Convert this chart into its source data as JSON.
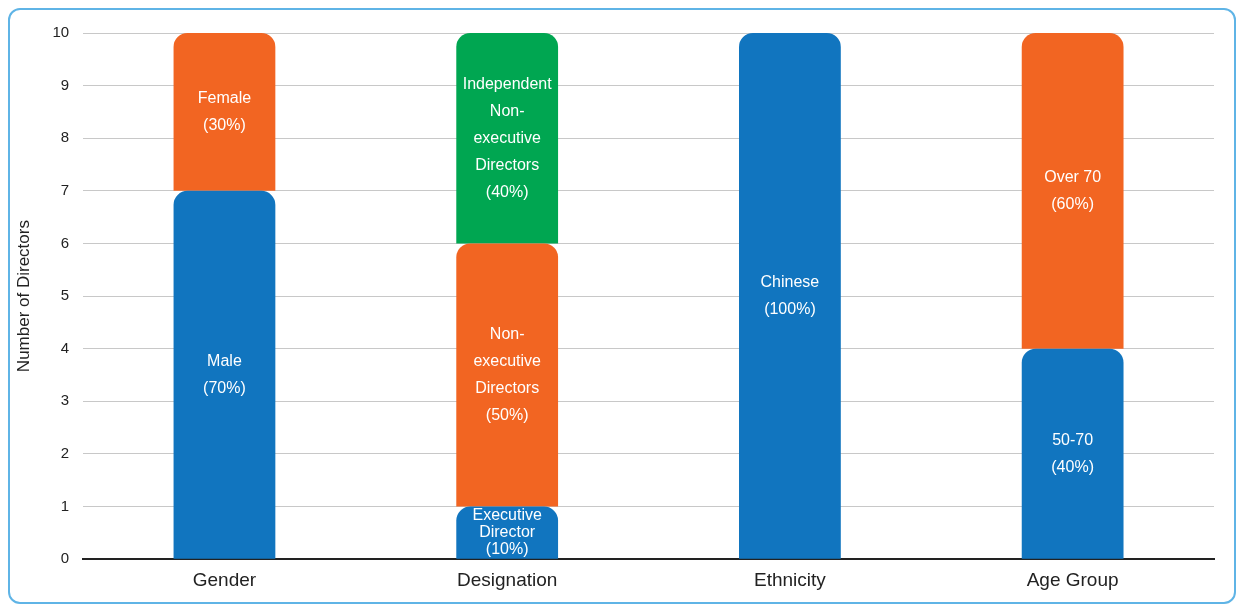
{
  "chart_data": {
    "type": "bar",
    "stacked": true,
    "ylabel": "Number of Directors",
    "categories": [
      "Gender",
      "Designation",
      "Ethnicity",
      "Age Group"
    ],
    "ylim": [
      0,
      10
    ],
    "yticks": [
      0,
      1,
      2,
      3,
      4,
      5,
      6,
      7,
      8,
      9,
      10
    ],
    "grid": "y",
    "legend": false,
    "series": [
      {
        "color": "#1175bf",
        "values": [
          7,
          1,
          10,
          4
        ]
      },
      {
        "color": "#f26522",
        "values": [
          3,
          5,
          null,
          6
        ]
      },
      {
        "color": "#00a651",
        "values": [
          null,
          4,
          null,
          null
        ]
      }
    ],
    "annotations": [
      "Male (70%)",
      "Female (30%)",
      "Executive Director (10%)",
      "Non-executive Directors (50%)",
      "Independent Non-executive Directors (40%)",
      "Chinese (100%)",
      "50-70 (40%)",
      "Over 70 (60%)"
    ]
  }
}
